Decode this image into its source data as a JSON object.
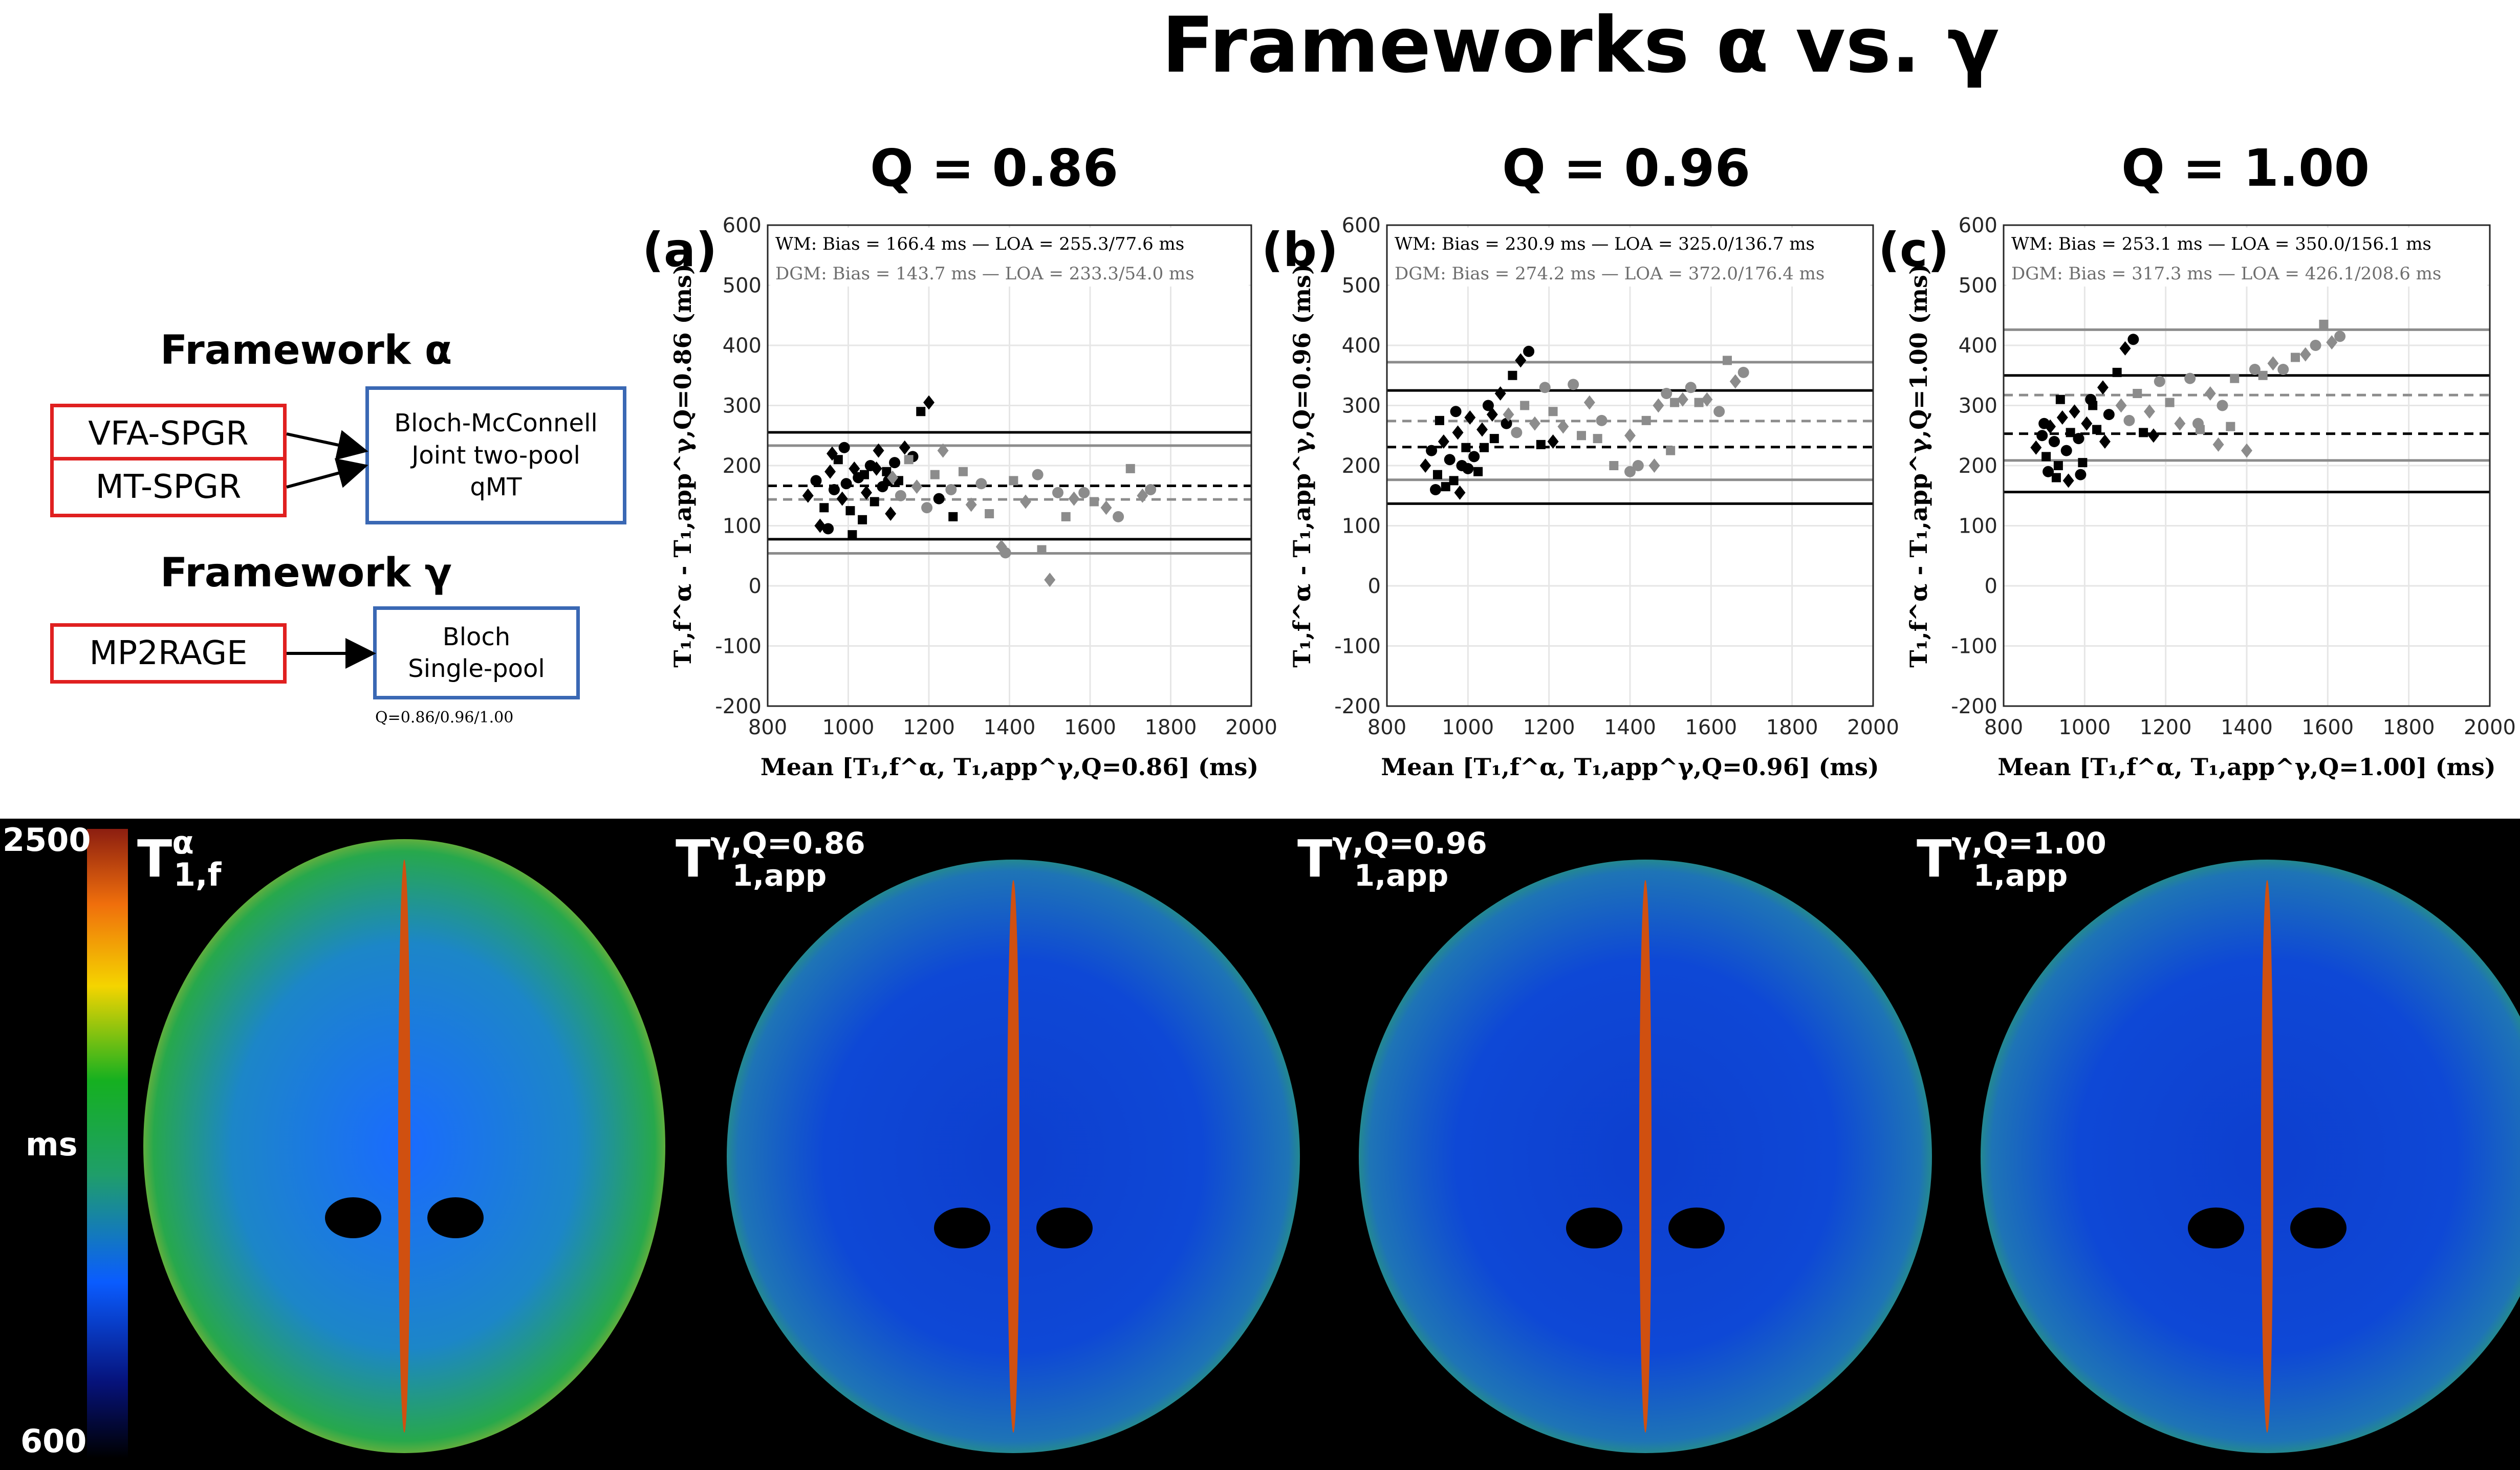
{
  "title": "Frameworks α vs. γ",
  "diagram": {
    "framework_alpha": {
      "title": "Framework α",
      "inputs": [
        "VFA-SPGR",
        "MT-SPGR"
      ],
      "model": [
        "Bloch-McConnell",
        "Joint two-pool",
        "qMT"
      ]
    },
    "framework_gamma": {
      "title": "Framework γ",
      "inputs": [
        "MP2RAGE"
      ],
      "model": [
        "Bloch",
        "Single-pool"
      ],
      "note": "Q=0.86/0.96/1.00"
    }
  },
  "chart_data": [
    {
      "type": "scatter",
      "panel": "(a)",
      "title": "Q = 0.86",
      "xlabel": "Mean [T₁,f^α, T₁,app^γ,Q=0.86] (ms)",
      "ylabel": "T₁,f^α - T₁,app^γ,Q=0.86 (ms)",
      "xlim": [
        800,
        2000
      ],
      "ylim": [
        -200,
        600
      ],
      "xticks": [
        800,
        1000,
        1200,
        1400,
        1600,
        1800,
        2000
      ],
      "yticks": [
        -200,
        -100,
        0,
        100,
        200,
        300,
        400,
        500,
        600
      ],
      "grid": true,
      "legend": [
        "WM:   Bias = 166.4 ms — LOA = 255.3/77.6 ms",
        "DGM:  Bias = 143.7 ms — LOA = 233.3/54.0 ms"
      ],
      "series": [
        {
          "name": "WM",
          "color": "#000000",
          "bias": 166.4,
          "loa": [
            255.3,
            77.6
          ],
          "points": [
            [
              900,
              150
            ],
            [
              920,
              175
            ],
            [
              940,
              130
            ],
            [
              955,
              190
            ],
            [
              965,
              160
            ],
            [
              975,
              210
            ],
            [
              985,
              145
            ],
            [
              995,
              170
            ],
            [
              1005,
              125
            ],
            [
              1015,
              195
            ],
            [
              1025,
              180
            ],
            [
              1035,
              110
            ],
            [
              1045,
              155
            ],
            [
              1055,
              200
            ],
            [
              1065,
              140
            ],
            [
              1075,
              225
            ],
            [
              1085,
              165
            ],
            [
              1095,
              190
            ],
            [
              1105,
              120
            ],
            [
              1115,
              205
            ],
            [
              1125,
              175
            ],
            [
              1140,
              230
            ],
            [
              1160,
              215
            ],
            [
              1180,
              290
            ],
            [
              1200,
              305
            ],
            [
              1225,
              145
            ],
            [
              1260,
              115
            ],
            [
              930,
              100
            ],
            [
              950,
              95
            ],
            [
              1010,
              85
            ],
            [
              960,
              220
            ],
            [
              990,
              230
            ],
            [
              1040,
              185
            ],
            [
              1070,
              195
            ],
            [
              1100,
              175
            ]
          ]
        },
        {
          "name": "DGM",
          "color": "#8c8c8c",
          "bias": 143.7,
          "loa": [
            233.3,
            54.0
          ],
          "points": [
            [
              1110,
              180
            ],
            [
              1130,
              150
            ],
            [
              1150,
              210
            ],
            [
              1170,
              165
            ],
            [
              1195,
              130
            ],
            [
              1215,
              185
            ],
            [
              1235,
              225
            ],
            [
              1255,
              160
            ],
            [
              1285,
              190
            ],
            [
              1305,
              135
            ],
            [
              1330,
              170
            ],
            [
              1350,
              120
            ],
            [
              1380,
              65
            ],
            [
              1390,
              55
            ],
            [
              1410,
              175
            ],
            [
              1440,
              140
            ],
            [
              1470,
              185
            ],
            [
              1480,
              60
            ],
            [
              1500,
              10
            ],
            [
              1520,
              155
            ],
            [
              1540,
              115
            ],
            [
              1560,
              145
            ],
            [
              1585,
              155
            ],
            [
              1610,
              140
            ],
            [
              1640,
              130
            ],
            [
              1670,
              115
            ],
            [
              1700,
              195
            ],
            [
              1730,
              150
            ],
            [
              1750,
              160
            ]
          ]
        }
      ]
    },
    {
      "type": "scatter",
      "panel": "(b)",
      "title": "Q = 0.96",
      "xlabel": "Mean [T₁,f^α, T₁,app^γ,Q=0.96] (ms)",
      "ylabel": "T₁,f^α - T₁,app^γ,Q=0.96 (ms)",
      "xlim": [
        800,
        2000
      ],
      "ylim": [
        -200,
        600
      ],
      "xticks": [
        800,
        1000,
        1200,
        1400,
        1600,
        1800,
        2000
      ],
      "yticks": [
        -200,
        -100,
        0,
        100,
        200,
        300,
        400,
        500,
        600
      ],
      "grid": true,
      "legend": [
        "WM:   Bias = 230.9 ms — LOA = 325.0/136.7 ms",
        "DGM:  Bias = 274.2 ms — LOA = 372.0/176.4 ms"
      ],
      "series": [
        {
          "name": "WM",
          "color": "#000000",
          "bias": 230.9,
          "loa": [
            325.0,
            136.7
          ],
          "points": [
            [
              895,
              200
            ],
            [
              910,
              225
            ],
            [
              925,
              185
            ],
            [
              940,
              240
            ],
            [
              955,
              210
            ],
            [
              965,
              175
            ],
            [
              975,
              255
            ],
            [
              985,
              200
            ],
            [
              995,
              230
            ],
            [
              1005,
              280
            ],
            [
              1015,
              215
            ],
            [
              1025,
              190
            ],
            [
              1035,
              260
            ],
            [
              1050,
              300
            ],
            [
              1065,
              245
            ],
            [
              1080,
              320
            ],
            [
              1095,
              270
            ],
            [
              1110,
              350
            ],
            [
              1130,
              375
            ],
            [
              1150,
              390
            ],
            [
              1180,
              235
            ],
            [
              1210,
              240
            ],
            [
              920,
              160
            ],
            [
              945,
              165
            ],
            [
              980,
              155
            ],
            [
              1000,
              195
            ],
            [
              1040,
              230
            ],
            [
              1060,
              285
            ],
            [
              970,
              290
            ],
            [
              930,
              275
            ]
          ]
        },
        {
          "name": "DGM",
          "color": "#8c8c8c",
          "bias": 274.2,
          "loa": [
            372.0,
            176.4
          ],
          "points": [
            [
              1100,
              285
            ],
            [
              1120,
              255
            ],
            [
              1140,
              300
            ],
            [
              1165,
              270
            ],
            [
              1190,
              330
            ],
            [
              1210,
              290
            ],
            [
              1235,
              265
            ],
            [
              1260,
              335
            ],
            [
              1280,
              250
            ],
            [
              1300,
              305
            ],
            [
              1330,
              275
            ],
            [
              1360,
              200
            ],
            [
              1400,
              250
            ],
            [
              1420,
              200
            ],
            [
              1440,
              275
            ],
            [
              1470,
              300
            ],
            [
              1490,
              320
            ],
            [
              1510,
              305
            ],
            [
              1530,
              310
            ],
            [
              1550,
              330
            ],
            [
              1570,
              305
            ],
            [
              1590,
              310
            ],
            [
              1620,
              290
            ],
            [
              1640,
              375
            ],
            [
              1660,
              340
            ],
            [
              1680,
              355
            ],
            [
              1500,
              225
            ],
            [
              1460,
              200
            ],
            [
              1400,
              190
            ],
            [
              1320,
              245
            ]
          ]
        }
      ]
    },
    {
      "type": "scatter",
      "panel": "(c)",
      "title": "Q = 1.00",
      "xlabel": "Mean [T₁,f^α, T₁,app^γ,Q=1.00] (ms)",
      "ylabel": "T₁,f^α - T₁,app^γ,Q=1.00 (ms)",
      "xlim": [
        800,
        2000
      ],
      "ylim": [
        -200,
        600
      ],
      "xticks": [
        800,
        1000,
        1200,
        1400,
        1600,
        1800,
        2000
      ],
      "yticks": [
        -200,
        -100,
        0,
        100,
        200,
        300,
        400,
        500,
        600
      ],
      "grid": true,
      "legend": [
        "WM:   Bias = 253.1 ms — LOA = 350.0/156.1 ms",
        "DGM:  Bias = 317.3 ms — LOA = 426.1/208.6 ms"
      ],
      "series": [
        {
          "name": "WM",
          "color": "#000000",
          "bias": 253.1,
          "loa": [
            350.0,
            156.1
          ],
          "points": [
            [
              880,
              230
            ],
            [
              895,
              250
            ],
            [
              905,
              215
            ],
            [
              915,
              265
            ],
            [
              925,
              240
            ],
            [
              935,
              200
            ],
            [
              945,
              280
            ],
            [
              955,
              225
            ],
            [
              965,
              255
            ],
            [
              975,
              290
            ],
            [
              985,
              245
            ],
            [
              995,
              205
            ],
            [
              1005,
              270
            ],
            [
              1015,
              310
            ],
            [
              1030,
              260
            ],
            [
              1045,
              330
            ],
            [
              1060,
              285
            ],
            [
              1080,
              355
            ],
            [
              1100,
              395
            ],
            [
              1120,
              410
            ],
            [
              1145,
              255
            ],
            [
              1170,
              250
            ],
            [
              910,
              190
            ],
            [
              930,
              180
            ],
            [
              960,
              175
            ],
            [
              990,
              185
            ],
            [
              1020,
              300
            ],
            [
              1050,
              240
            ],
            [
              900,
              270
            ],
            [
              940,
              310
            ]
          ]
        },
        {
          "name": "DGM",
          "color": "#8c8c8c",
          "bias": 317.3,
          "loa": [
            426.1,
            208.6
          ],
          "points": [
            [
              1090,
              300
            ],
            [
              1110,
              275
            ],
            [
              1130,
              320
            ],
            [
              1160,
              290
            ],
            [
              1185,
              340
            ],
            [
              1210,
              305
            ],
            [
              1235,
              270
            ],
            [
              1260,
              345
            ],
            [
              1285,
              260
            ],
            [
              1310,
              320
            ],
            [
              1340,
              300
            ],
            [
              1370,
              345
            ],
            [
              1400,
              225
            ],
            [
              1420,
              360
            ],
            [
              1440,
              350
            ],
            [
              1465,
              370
            ],
            [
              1490,
              360
            ],
            [
              1520,
              380
            ],
            [
              1545,
              385
            ],
            [
              1570,
              400
            ],
            [
              1590,
              435
            ],
            [
              1610,
              405
            ],
            [
              1630,
              415
            ],
            [
              1360,
              265
            ],
            [
              1330,
              235
            ],
            [
              1280,
              270
            ]
          ]
        }
      ]
    }
  ],
  "maps": {
    "labels": [
      {
        "main": "T",
        "sup": "α",
        "sub": "1,f"
      },
      {
        "main": "T",
        "sup": "γ,Q=0.86",
        "sub": "1,app"
      },
      {
        "main": "T",
        "sup": "γ,Q=0.96",
        "sub": "1,app"
      },
      {
        "main": "T",
        "sup": "γ,Q=1.00",
        "sub": "1,app"
      }
    ],
    "colorbar": {
      "max": "2500",
      "min": "600",
      "unit": "ms"
    }
  }
}
